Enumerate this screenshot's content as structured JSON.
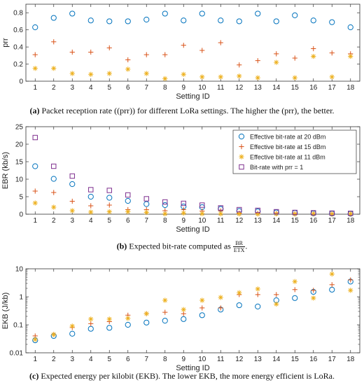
{
  "captions": {
    "a": {
      "tag": "(a)",
      "text": "Packet reception rate ((prr)) for different LoRa settings. The higher the (prr), the better."
    },
    "b": {
      "tag": "(b)",
      "text": "Expected bit-rate computed as",
      "frac_num": "BR",
      "frac_den": "ETX",
      "end": "."
    },
    "c": {
      "tag": "(c)",
      "text": "Expected energy per kilobit (EKB). The lower EKB, the more energy efficient is LoRa."
    }
  },
  "colors": {
    "blue": "#0072BD",
    "red": "#D95319",
    "yellow": "#EDB120",
    "purple": "#7E2F8E"
  },
  "chart_data": [
    {
      "type": "scatter",
      "xlabel": "Setting ID",
      "ylabel": "prr",
      "xlim": [
        0.5,
        18.5
      ],
      "ylim": [
        0,
        0.9
      ],
      "yticks": [
        0,
        0.2,
        0.4,
        0.6,
        0.8
      ],
      "yticklabels": [
        "0",
        "0.2",
        "0.4",
        "0.6",
        "0.8"
      ],
      "x": [
        1,
        2,
        3,
        4,
        5,
        6,
        7,
        8,
        9,
        10,
        11,
        12,
        13,
        14,
        15,
        16,
        17,
        18
      ],
      "series": [
        {
          "marker": "circle",
          "color": "#0072BD",
          "values": [
            0.63,
            0.74,
            0.79,
            0.71,
            0.7,
            0.7,
            0.72,
            0.79,
            0.71,
            0.79,
            0.71,
            0.7,
            0.79,
            0.7,
            0.77,
            0.71,
            0.69,
            0.63
          ]
        },
        {
          "marker": "plus",
          "color": "#D95319",
          "values": [
            0.31,
            0.46,
            0.34,
            0.34,
            0.39,
            0.25,
            0.31,
            0.31,
            0.42,
            0.36,
            0.45,
            0.19,
            0.24,
            0.32,
            0.27,
            0.38,
            0.33,
            0.32
          ]
        },
        {
          "marker": "asterisk",
          "color": "#EDB120",
          "values": [
            0.15,
            0.15,
            0.09,
            0.08,
            0.09,
            0.14,
            0.09,
            0.03,
            0.08,
            0.05,
            0.05,
            0.06,
            0.04,
            0.22,
            0.04,
            0.29,
            0.05,
            0.29
          ]
        }
      ]
    },
    {
      "type": "scatter",
      "xlabel": "Setting ID",
      "ylabel": "EBR (kb/s)",
      "xlim": [
        0.5,
        18.5
      ],
      "ylim": [
        0,
        25
      ],
      "yticks": [
        0,
        5,
        10,
        15,
        20,
        25
      ],
      "yticklabels": [
        "0",
        "5",
        "10",
        "15",
        "20",
        "25"
      ],
      "x": [
        1,
        2,
        3,
        4,
        5,
        6,
        7,
        8,
        9,
        10,
        11,
        12,
        13,
        14,
        15,
        16,
        17,
        18
      ],
      "legend_position": "top-right",
      "series": [
        {
          "name": "Effective bit-rate at 20 dBm",
          "marker": "circle",
          "color": "#0072BD",
          "values": [
            13.7,
            10.1,
            8.6,
            5.0,
            4.7,
            3.8,
            2.9,
            2.6,
            2.2,
            2.0,
            1.5,
            0.9,
            0.8,
            0.5,
            0.4,
            0.25,
            0.2,
            0.15
          ]
        },
        {
          "name": "Effective bit-rate at 15 dBm",
          "marker": "plus",
          "color": "#D95319",
          "values": [
            6.6,
            6.2,
            3.7,
            2.4,
            2.6,
            1.3,
            1.3,
            1.0,
            1.3,
            0.9,
            0.95,
            0.3,
            0.25,
            0.2,
            0.15,
            0.1,
            0.1,
            0.05
          ]
        },
        {
          "name": "Effective bit-rate at 11 dBm",
          "marker": "asterisk",
          "color": "#EDB120",
          "values": [
            3.2,
            2.0,
            1.0,
            0.6,
            0.7,
            0.7,
            0.5,
            0.1,
            0.3,
            0.15,
            0.1,
            0.1,
            0.05,
            0.1,
            0.03,
            0.1,
            0.02,
            0.05
          ]
        },
        {
          "name": "Bit-rate with prr = 1",
          "marker": "square",
          "color": "#7E2F8E",
          "values": [
            21.9,
            13.7,
            10.9,
            7.0,
            6.8,
            5.5,
            4.4,
            3.5,
            3.1,
            2.6,
            1.8,
            1.3,
            1.1,
            0.7,
            0.5,
            0.4,
            0.3,
            0.25
          ]
        }
      ]
    },
    {
      "type": "scatter",
      "scale": "log",
      "xlabel": "Setting ID",
      "ylabel": "EKB (J/kb)",
      "xlim": [
        0.5,
        18.5
      ],
      "ylim": [
        0.01,
        10
      ],
      "yticks": [
        0.01,
        0.1,
        1,
        10
      ],
      "yticklabels": [
        "0.01",
        "0.1",
        "1",
        "10"
      ],
      "x": [
        1,
        2,
        3,
        4,
        5,
        6,
        7,
        8,
        9,
        10,
        11,
        12,
        13,
        14,
        15,
        16,
        17,
        18
      ],
      "series": [
        {
          "marker": "circle",
          "color": "#0072BD",
          "values": [
            0.028,
            0.04,
            0.048,
            0.072,
            0.078,
            0.1,
            0.12,
            0.14,
            0.16,
            0.22,
            0.35,
            0.5,
            0.45,
            0.75,
            0.9,
            1.5,
            1.8,
            3.5
          ]
        },
        {
          "marker": "plus",
          "color": "#D95319",
          "values": [
            0.04,
            0.045,
            0.08,
            0.11,
            0.13,
            0.22,
            0.25,
            0.28,
            0.25,
            0.4,
            0.4,
            1.2,
            1.2,
            1.2,
            1.8,
            1.7,
            2.7,
            4.0
          ]
        },
        {
          "marker": "asterisk",
          "color": "#EDB120",
          "values": [
            0.03,
            0.045,
            0.09,
            0.16,
            0.16,
            0.17,
            0.25,
            0.75,
            0.35,
            0.75,
            0.95,
            1.4,
            1.9,
            0.55,
            3.5,
            0.9,
            6.5,
            1.7
          ]
        }
      ]
    }
  ]
}
